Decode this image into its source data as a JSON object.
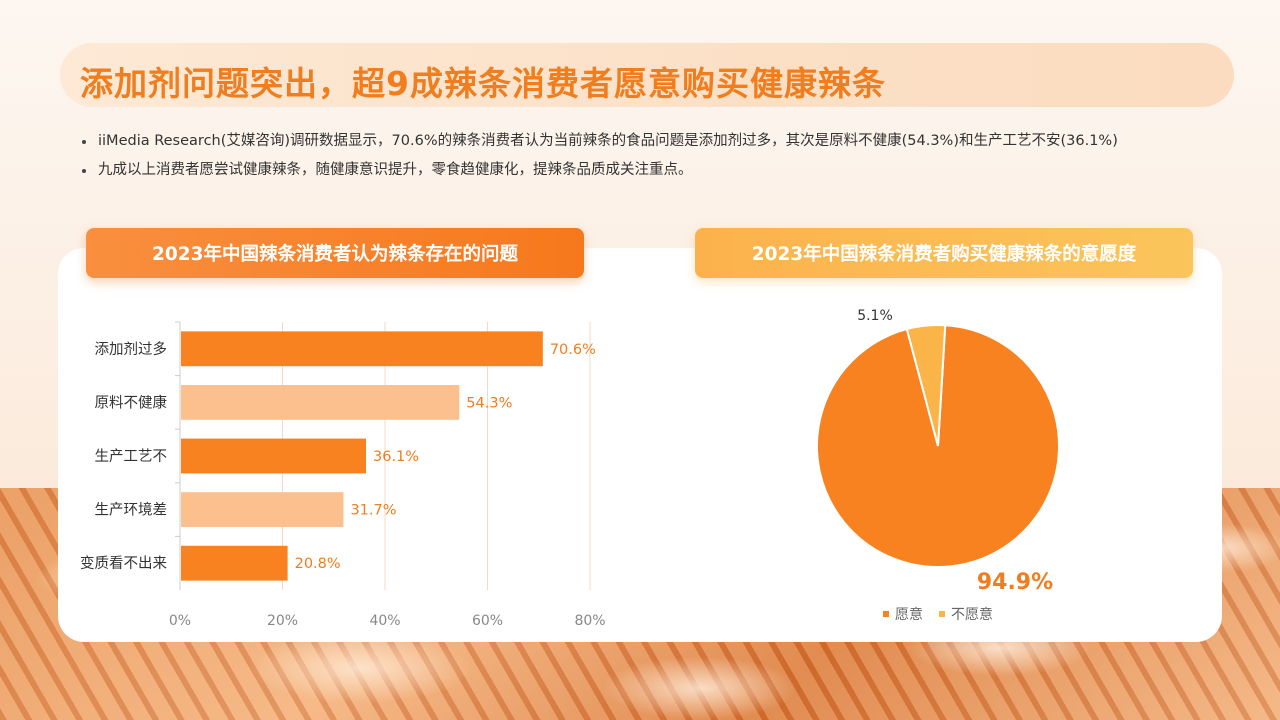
{
  "title": "添加剂问题突出，超9成辣条消费者愿意购买健康辣条",
  "bullets": [
    "iiMedia Research(艾媒咨询)调研数据显示，70.6%的辣条消费者认为当前辣条的食品问题是添加剂过多，其次是原料不健康(54.3%)和生产工艺不安(36.1%)",
    "九成以上消费者愿尝试健康辣条，随健康意识提升，零食趋健康化，提辣条品质成关注重点。"
  ],
  "colors": {
    "accent": "#f7821f",
    "accent_light": "#fbc08e",
    "pie_minor": "#fbb448",
    "axis_text": "#888888"
  },
  "chart_data": [
    {
      "type": "bar",
      "orientation": "horizontal",
      "title": "2023年中国辣条消费者认为辣条存在的问题",
      "categories": [
        "添加剂过多",
        "原料不健康",
        "生产工艺不",
        "生产环境差",
        "变质看不出来"
      ],
      "values": [
        70.6,
        54.3,
        36.1,
        31.7,
        20.8
      ],
      "value_labels": [
        "70.6%",
        "54.3%",
        "36.1%",
        "31.7%",
        "20.8%"
      ],
      "xlim": [
        0,
        80
      ],
      "xticks": [
        "0%",
        "20%",
        "40%",
        "60%",
        "80%"
      ],
      "grid": true
    },
    {
      "type": "pie",
      "title": "2023年中国辣条消费者购买健康辣条的意愿度",
      "labels": [
        "愿意",
        "不愿意"
      ],
      "values": [
        94.9,
        5.1
      ],
      "value_labels": [
        "94.9%",
        "5.1%"
      ],
      "legend": "bottom"
    }
  ]
}
